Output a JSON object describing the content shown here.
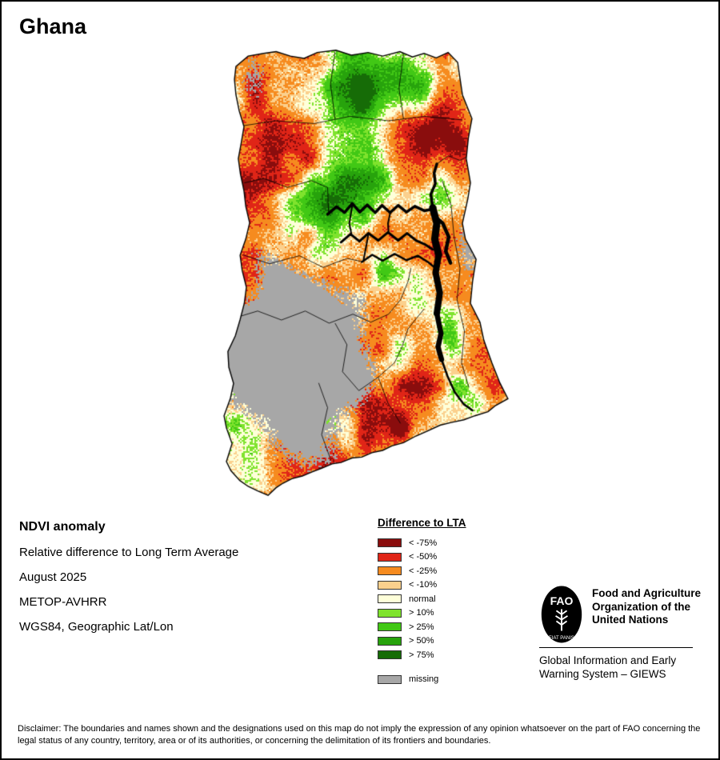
{
  "title": "Ghana",
  "info": {
    "heading": "NDVI anomaly",
    "lines": [
      "Relative difference to Long Term Average",
      "August 2025",
      "METOP-AVHRR",
      "WGS84, Geographic Lat/Lon"
    ]
  },
  "legend": {
    "title": "Difference to LTA",
    "items": [
      {
        "key": "lt75",
        "label": "< -75%",
        "color": "#8a0d0d"
      },
      {
        "key": "lt50",
        "label": "< -50%",
        "color": "#e02517"
      },
      {
        "key": "lt25",
        "label": "< -25%",
        "color": "#f68b1f"
      },
      {
        "key": "lt10",
        "label": "< -10%",
        "color": "#fbd08d"
      },
      {
        "key": "normal",
        "label": "normal",
        "color": "#feffd9"
      },
      {
        "key": "gt10",
        "label": "> 10%",
        "color": "#7fe32d"
      },
      {
        "key": "gt25",
        "label": "> 25%",
        "color": "#41c815"
      },
      {
        "key": "gt50",
        "label": "> 50%",
        "color": "#27a30c"
      },
      {
        "key": "gt75",
        "label": "> 75%",
        "color": "#166c07"
      },
      {
        "key": "missing",
        "label": "missing",
        "color": "#a7a7a7",
        "separated": true
      }
    ]
  },
  "map": {
    "country": "Ghana",
    "lake_color": "#000000",
    "border_color": "#000000"
  },
  "fao": {
    "logo_text": "FAO",
    "motto": "FIAT PANIS",
    "org_name": "Food and Agriculture Organization of the United Nations",
    "giews": "Global Information and Early Warning System – GIEWS"
  },
  "disclaimer": "Disclaimer: The boundaries and names shown and the designations used on this map do not imply the expression of any opinion whatsoever on the part of FAO concerning the legal status of any country, territory, area or of its authorities, or concerning the delimitation of its frontiers and boundaries."
}
